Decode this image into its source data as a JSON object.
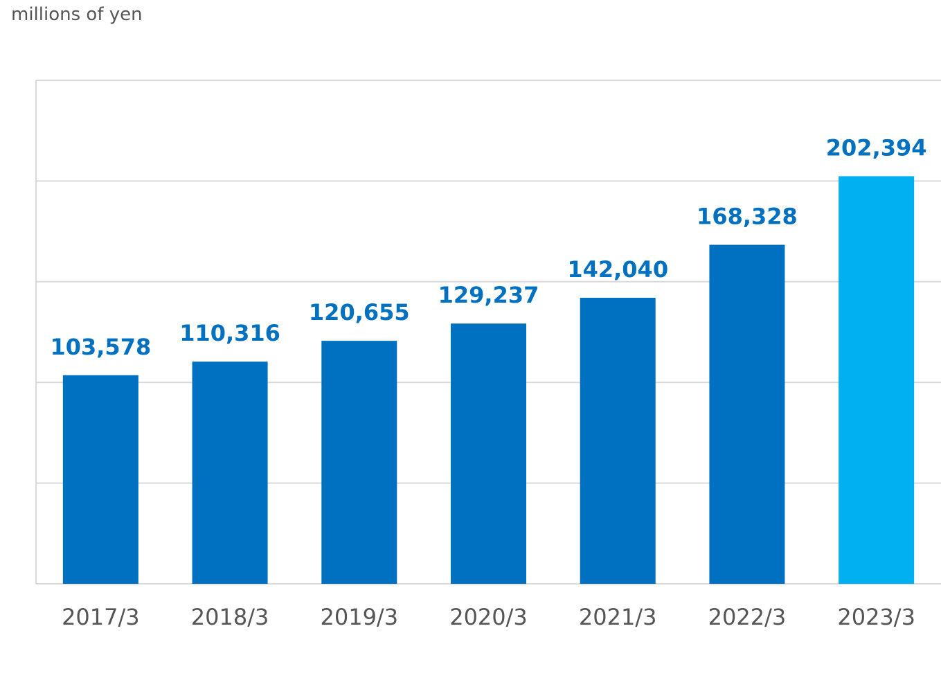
{
  "chart_data": {
    "type": "bar",
    "unit_label": "millions of yen",
    "categories": [
      "2017/3",
      "2018/3",
      "2019/3",
      "2020/3",
      "2021/3",
      "2022/3",
      "2023/3"
    ],
    "values": [
      103578,
      110316,
      120655,
      129237,
      142040,
      168328,
      202394
    ],
    "value_labels": [
      "103,578",
      "110,316",
      "120,655",
      "129,237",
      "142,040",
      "168,328",
      "202,394"
    ],
    "ylim": [
      0,
      250000
    ],
    "y_gridline_step": 50000,
    "grid": true,
    "y_tick_labels_shown": false,
    "legend": "none",
    "highlighted_category": "2023/3",
    "colors": {
      "bar": "#0070c0",
      "bar_highlight": "#00b0f0",
      "value_label": "#0070c0",
      "gridline": "#d9d9d9",
      "axis_text": "#555555"
    }
  }
}
